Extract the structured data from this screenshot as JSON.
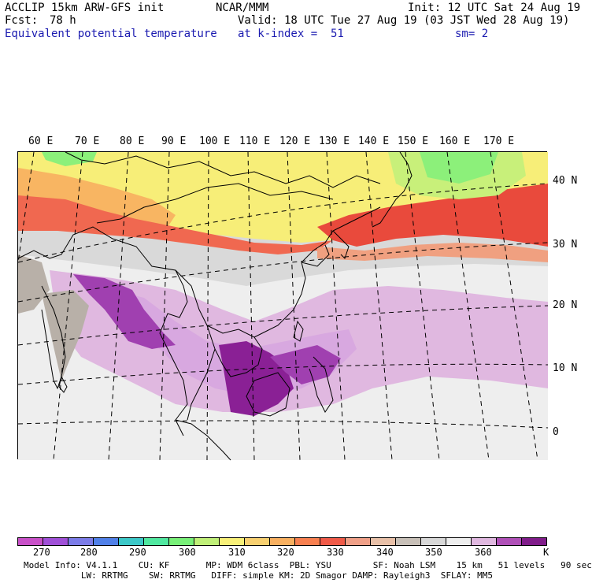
{
  "header": {
    "model": "ACCLIP 15km ARW-GFS init",
    "org": "NCAR/MMM",
    "init": "Init: 12 UTC Sat 24 Aug 19",
    "fcst_label": "Fcst:",
    "fcst_value": "78 h",
    "valid": "Valid: 18 UTC Tue 27 Aug 19 (03 JST Wed 28 Aug 19)",
    "field": "Equivalent potential temperature",
    "level": "at k-index =  51",
    "smooth": "sm= 2"
  },
  "map": {
    "lon_labels": [
      "60 E",
      "70 E",
      "80 E",
      "90 E",
      "100 E",
      "110 E",
      "120 E",
      "130 E",
      "140 E",
      "150 E",
      "160 E",
      "170 E"
    ],
    "lat_labels": [
      "40 N",
      "30 N",
      "20 N",
      "10 N",
      "0"
    ],
    "colors": {
      "yellow": "#f7ee78",
      "orange": "#f8b562",
      "red_orange": "#f06850",
      "red": "#e94a3c",
      "salmon": "#f0a080",
      "green": "#8cf07a",
      "lt_green": "#c8f07a",
      "lt_gray": "#eeeeee",
      "mid_gray": "#d9d9d9",
      "dk_gray": "#b8b0a8",
      "lavender": "#e0b8e0",
      "lt_purple": "#d8a8e0",
      "purple": "#a040b0",
      "dk_purple": "#8a2095"
    }
  },
  "colorbar": {
    "colors": [
      "#c850c8",
      "#a050d8",
      "#7c7ce8",
      "#5080e8",
      "#3cc8c8",
      "#50e8a0",
      "#78f078",
      "#c0f078",
      "#f8f078",
      "#f8d070",
      "#f8b060",
      "#f88050",
      "#f05a48",
      "#f0a088",
      "#e8c0a8",
      "#c8c0b8",
      "#d8d8d8",
      "#eeeeee",
      "#e0b8e0",
      "#b050b8",
      "#801c8a"
    ],
    "ticks": [
      "270",
      "280",
      "290",
      "300",
      "310",
      "320",
      "330",
      "340",
      "350",
      "360"
    ],
    "unit": "K"
  },
  "footer": {
    "line1": "Model Info: V4.1.1    CU: KF       MP: WDM 6class  PBL: YSU        SF: Noah LSM    15 km   51 levels   90 sec",
    "line2": "           LW: RRTMG    SW: RRTMG   DIFF: simple KM: 2D Smagor DAMP: Rayleigh3  SFLAY: MM5"
  }
}
